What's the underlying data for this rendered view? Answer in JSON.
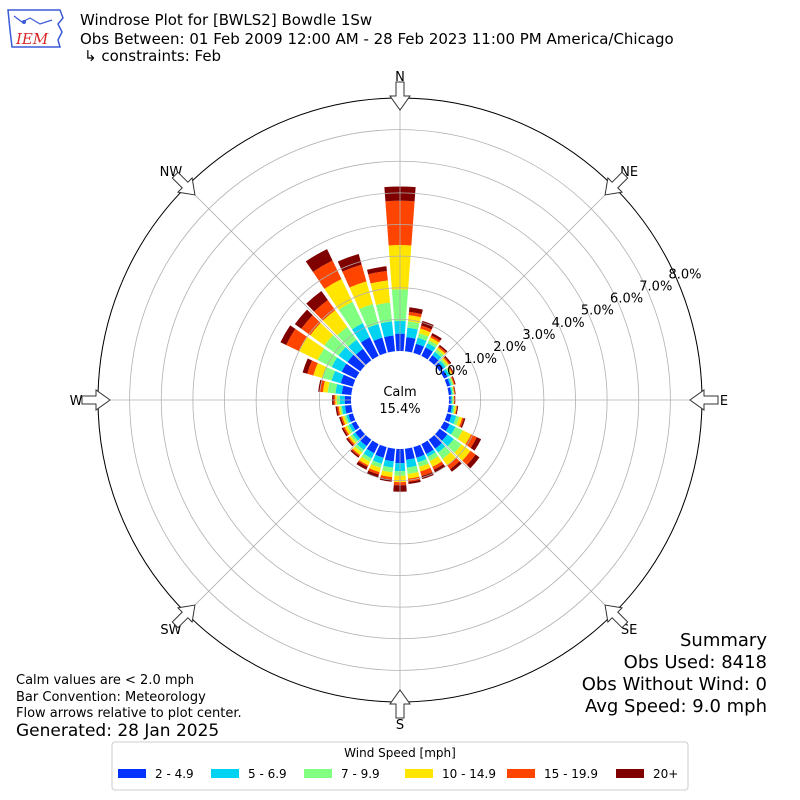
{
  "header": {
    "logo_text": "IEM",
    "title_line1": "Windrose Plot for [BWLS2] Bowdle 1Sw",
    "title_line2": "Obs Between: 01 Feb 2009 12:00 AM - 28 Feb 2023 11:00 PM America/Chicago",
    "title_line3": "↳ constraints: Feb"
  },
  "notes": {
    "calm_note": "Calm values are < 2.0 mph",
    "bar_convention": "Bar Convention: Meteorology",
    "flow_note": "Flow arrows relative to plot center.",
    "generated": "Generated: 28 Jan 2025"
  },
  "summary": {
    "title": "Summary",
    "obs_used": "Obs Used: 8418",
    "obs_without_wind": "Obs Without Wind: 0",
    "avg_speed": "Avg Speed: 9.0 mph"
  },
  "colors": {
    "bin1": "#0433ff",
    "bin2": "#00d2f2",
    "bin3": "#80ff80",
    "bin4": "#ffe500",
    "bin5": "#ff4400",
    "bin6": "#800000"
  },
  "chart_data": {
    "type": "windrose",
    "calm_label": "Calm",
    "calm_value_text": "15.4%",
    "calm_percent": 15.4,
    "radial_max": 8.0,
    "radial_ticks": [
      0,
      1,
      2,
      3,
      4,
      5,
      6,
      7,
      8
    ],
    "radial_tick_labels": [
      "0.0%",
      "1.0%",
      "2.0%",
      "3.0%",
      "4.0%",
      "5.0%",
      "6.0%",
      "7.0%",
      "8.0%"
    ],
    "compass_labels": [
      {
        "label": "N",
        "angle": 0
      },
      {
        "label": "NE",
        "angle": 45
      },
      {
        "label": "E",
        "angle": 90
      },
      {
        "label": "SE",
        "angle": 135
      },
      {
        "label": "S",
        "angle": 180
      },
      {
        "label": "SW",
        "angle": 225
      },
      {
        "label": "W",
        "angle": 270
      },
      {
        "label": "NW",
        "angle": 315
      }
    ],
    "legend_title": "Wind Speed [mph]",
    "bins": [
      "2 - 4.9",
      "5 - 6.9",
      "7 - 9.9",
      "10 - 14.9",
      "15 - 19.9",
      "20+"
    ],
    "directions": [
      0,
      10,
      20,
      30,
      40,
      50,
      60,
      70,
      80,
      90,
      100,
      110,
      120,
      130,
      140,
      150,
      160,
      170,
      180,
      190,
      200,
      210,
      220,
      230,
      240,
      250,
      260,
      270,
      280,
      290,
      300,
      310,
      320,
      330,
      340,
      350
    ],
    "cumulative_percent": [
      [
        0.55,
        0.95,
        1.95,
        3.35,
        4.75,
        5.2
      ],
      [
        0.45,
        0.75,
        0.95,
        1.15,
        1.25,
        1.4
      ],
      [
        0.3,
        0.5,
        0.65,
        0.8,
        0.9,
        1.05
      ],
      [
        0.3,
        0.45,
        0.55,
        0.65,
        0.72,
        0.8
      ],
      [
        0.2,
        0.33,
        0.43,
        0.5,
        0.55,
        0.6
      ],
      [
        0.15,
        0.23,
        0.3,
        0.36,
        0.4,
        0.45
      ],
      [
        0.12,
        0.2,
        0.26,
        0.3,
        0.33,
        0.36
      ],
      [
        0.1,
        0.15,
        0.2,
        0.22,
        0.25,
        0.28
      ],
      [
        0.08,
        0.12,
        0.16,
        0.18,
        0.2,
        0.22
      ],
      [
        0.06,
        0.1,
        0.14,
        0.16,
        0.18,
        0.2
      ],
      [
        0.1,
        0.15,
        0.2,
        0.25,
        0.27,
        0.3
      ],
      [
        0.15,
        0.3,
        0.4,
        0.5,
        0.55,
        0.6
      ],
      [
        0.2,
        0.4,
        0.65,
        0.95,
        1.15,
        1.3
      ],
      [
        0.3,
        0.55,
        0.85,
        1.2,
        1.4,
        1.55
      ],
      [
        0.35,
        0.5,
        0.75,
        1.0,
        1.15,
        1.25
      ],
      [
        0.35,
        0.45,
        0.6,
        0.8,
        0.9,
        1.0
      ],
      [
        0.35,
        0.5,
        0.65,
        0.8,
        0.95,
        1.05
      ],
      [
        0.35,
        0.6,
        0.8,
        0.95,
        1.05,
        1.12
      ],
      [
        0.45,
        0.7,
        0.85,
        1.05,
        1.15,
        1.35
      ],
      [
        0.4,
        0.6,
        0.75,
        0.9,
        0.98,
        1.05
      ],
      [
        0.35,
        0.55,
        0.68,
        0.82,
        0.9,
        1.0
      ],
      [
        0.32,
        0.5,
        0.62,
        0.75,
        0.8,
        0.9
      ],
      [
        0.25,
        0.4,
        0.5,
        0.6,
        0.65,
        0.7
      ],
      [
        0.2,
        0.3,
        0.38,
        0.45,
        0.5,
        0.55
      ],
      [
        0.15,
        0.25,
        0.32,
        0.4,
        0.45,
        0.5
      ],
      [
        0.15,
        0.22,
        0.28,
        0.35,
        0.4,
        0.45
      ],
      [
        0.2,
        0.3,
        0.35,
        0.4,
        0.45,
        0.5
      ],
      [
        0.2,
        0.35,
        0.45,
        0.5,
        0.55,
        0.6
      ],
      [
        0.3,
        0.5,
        0.75,
        0.9,
        1.0,
        1.05
      ],
      [
        0.4,
        0.7,
        1.0,
        1.3,
        1.5,
        1.65
      ],
      [
        0.5,
        0.85,
        1.35,
        2.0,
        2.45,
        2.65
      ],
      [
        0.5,
        0.85,
        1.4,
        1.95,
        2.3,
        2.55
      ],
      [
        0.45,
        0.8,
        1.3,
        1.95,
        2.35,
        2.7
      ],
      [
        0.65,
        1.15,
        1.9,
        2.7,
        3.35,
        3.75
      ],
      [
        0.5,
        0.95,
        1.6,
        2.35,
        2.9,
        3.25
      ],
      [
        0.5,
        0.95,
        1.55,
        2.25,
        2.55,
        2.7
      ]
    ]
  }
}
